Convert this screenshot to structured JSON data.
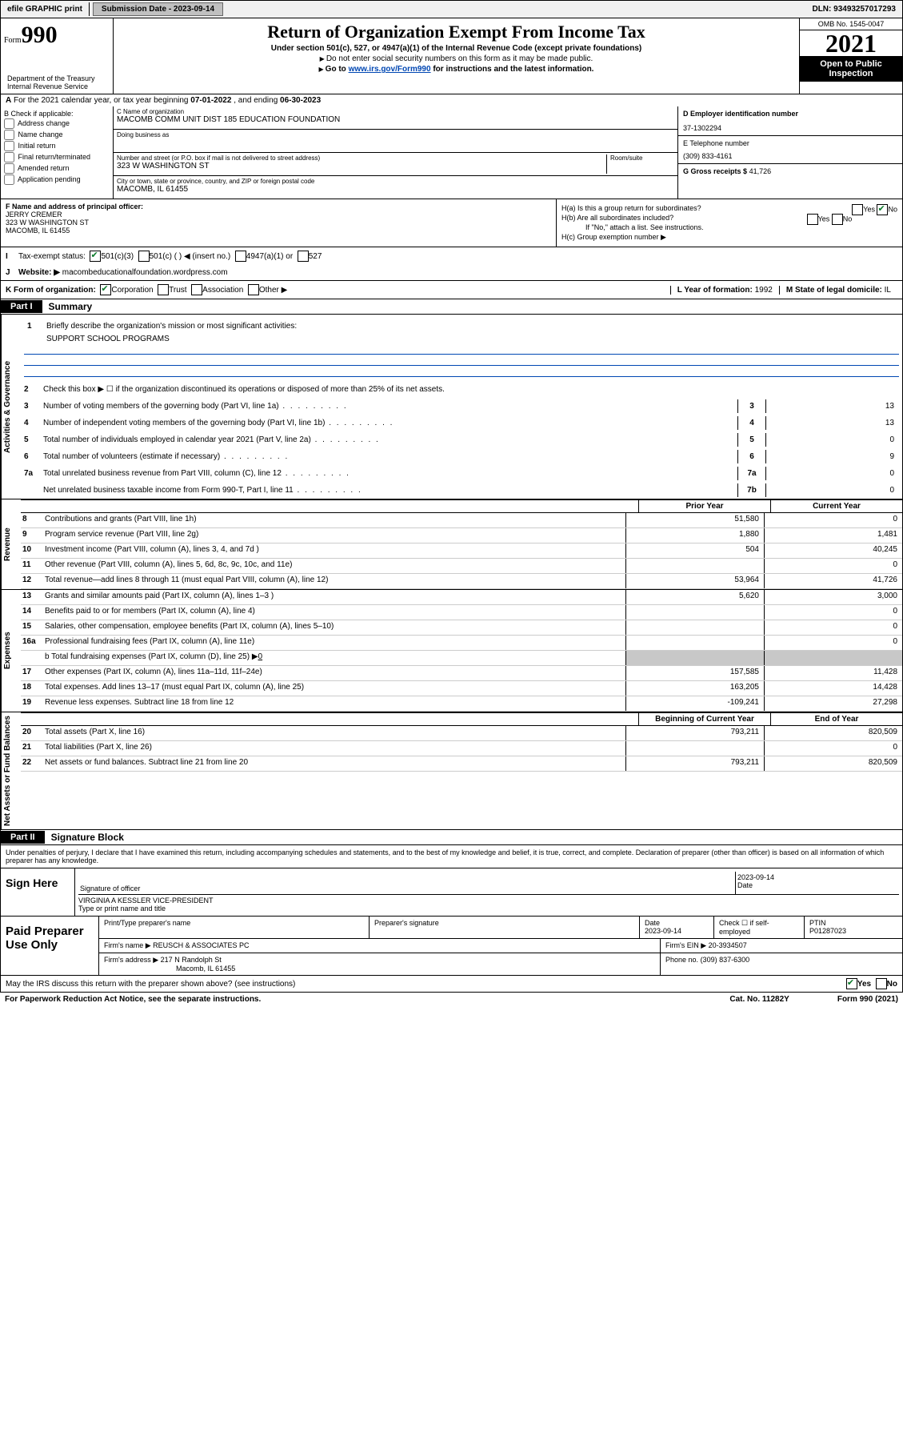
{
  "topbar": {
    "efile": "efile GRAPHIC print",
    "submission_label": "Submission Date - 2023-09-14",
    "dln": "DLN: 93493257017293"
  },
  "header": {
    "form_prefix": "Form",
    "form_number": "990",
    "title": "Return of Organization Exempt From Income Tax",
    "sub1": "Under section 501(c), 527, or 4947(a)(1) of the Internal Revenue Code (except private foundations)",
    "sub2": "Do not enter social security numbers on this form as it may be made public.",
    "sub3_pre": "Go to ",
    "sub3_link": "www.irs.gov/Form990",
    "sub3_post": " for instructions and the latest information.",
    "dept": "Department of the Treasury\nInternal Revenue Service",
    "omb": "OMB No. 1545-0047",
    "year": "2021",
    "open": "Open to Public Inspection"
  },
  "rowA": {
    "label": "A",
    "text_pre": "For the 2021 calendar year, or tax year beginning ",
    "begin": "07-01-2022",
    "mid": " , and ending ",
    "end": "06-30-2023"
  },
  "boxB": {
    "label": "B Check if applicable:",
    "items": [
      "Address change",
      "Name change",
      "Initial return",
      "Final return/terminated",
      "Amended return",
      "Application pending"
    ]
  },
  "boxC": {
    "name_lbl": "C Name of organization",
    "name": "MACOMB COMM UNIT DIST 185 EDUCATION FOUNDATION",
    "dba_lbl": "Doing business as",
    "dba": "",
    "addr_lbl": "Number and street (or P.O. box if mail is not delivered to street address)",
    "room_lbl": "Room/suite",
    "street": "323 W WASHINGTON ST",
    "city_lbl": "City or town, state or province, country, and ZIP or foreign postal code",
    "city": "MACOMB, IL  61455"
  },
  "boxD": {
    "ein_lbl": "D Employer identification number",
    "ein": "37-1302294"
  },
  "boxE": {
    "tel_lbl": "E Telephone number",
    "tel": "(309) 833-4161"
  },
  "boxG": {
    "lbl": "G Gross receipts $",
    "val": "41,726"
  },
  "boxF": {
    "lbl": "F Name and address of principal officer:",
    "name": "JERRY CREMER",
    "addr1": "323 W WASHINGTON ST",
    "addr2": "MACOMB, IL  61455"
  },
  "boxH": {
    "ha": "H(a)  Is this a group return for subordinates?",
    "hb": "H(b)  Are all subordinates included?",
    "hb_note": "If \"No,\" attach a list. See instructions.",
    "hc": "H(c)  Group exemption number ▶",
    "yes": "Yes",
    "no": "No"
  },
  "rowI": {
    "lbl": "I",
    "tax_lbl": "Tax-exempt status:",
    "opts": [
      "501(c)(3)",
      "501(c) (  ) ◀ (insert no.)",
      "4947(a)(1) or",
      "527"
    ]
  },
  "rowJ": {
    "lbl": "J",
    "web_lbl": "Website: ▶",
    "web": "macombeducationalfoundation.wordpress.com"
  },
  "rowK": {
    "lbl": "K Form of organization:",
    "opts": [
      "Corporation",
      "Trust",
      "Association",
      "Other ▶"
    ],
    "L_lbl": "L Year of formation:",
    "L_val": "1992",
    "M_lbl": "M State of legal domicile:",
    "M_val": "IL"
  },
  "part1": {
    "tab": "Part I",
    "title": "Summary"
  },
  "sideLabels": {
    "gov": "Activities & Governance",
    "rev": "Revenue",
    "exp": "Expenses",
    "net": "Net Assets or Fund Balances"
  },
  "summary": {
    "l1_lbl": "Briefly describe the organization's mission or most significant activities:",
    "l1_val": "SUPPORT SCHOOL PROGRAMS",
    "l2": "Check this box ▶ ☐  if the organization discontinued its operations or disposed of more than 25% of its net assets.",
    "lines_single": [
      {
        "n": "3",
        "t": "Number of voting members of the governing body (Part VI, line 1a)",
        "box": "3",
        "v": "13"
      },
      {
        "n": "4",
        "t": "Number of independent voting members of the governing body (Part VI, line 1b)",
        "box": "4",
        "v": "13"
      },
      {
        "n": "5",
        "t": "Total number of individuals employed in calendar year 2021 (Part V, line 2a)",
        "box": "5",
        "v": "0"
      },
      {
        "n": "6",
        "t": "Total number of volunteers (estimate if necessary)",
        "box": "6",
        "v": "9"
      },
      {
        "n": "7a",
        "t": "Total unrelated business revenue from Part VIII, column (C), line 12",
        "box": "7a",
        "v": "0"
      },
      {
        "n": "",
        "t": "Net unrelated business taxable income from Form 990-T, Part I, line 11",
        "box": "7b",
        "v": "0"
      }
    ],
    "hdr_prior": "Prior Year",
    "hdr_curr": "Current Year",
    "rev_lines": [
      {
        "n": "8",
        "t": "Contributions and grants (Part VIII, line 1h)",
        "p": "51,580",
        "c": "0"
      },
      {
        "n": "9",
        "t": "Program service revenue (Part VIII, line 2g)",
        "p": "1,880",
        "c": "1,481"
      },
      {
        "n": "10",
        "t": "Investment income (Part VIII, column (A), lines 3, 4, and 7d )",
        "p": "504",
        "c": "40,245"
      },
      {
        "n": "11",
        "t": "Other revenue (Part VIII, column (A), lines 5, 6d, 8c, 9c, 10c, and 11e)",
        "p": "",
        "c": "0"
      },
      {
        "n": "12",
        "t": "Total revenue—add lines 8 through 11 (must equal Part VIII, column (A), line 12)",
        "p": "53,964",
        "c": "41,726"
      }
    ],
    "exp_lines": [
      {
        "n": "13",
        "t": "Grants and similar amounts paid (Part IX, column (A), lines 1–3 )",
        "p": "5,620",
        "c": "3,000"
      },
      {
        "n": "14",
        "t": "Benefits paid to or for members (Part IX, column (A), line 4)",
        "p": "",
        "c": "0"
      },
      {
        "n": "15",
        "t": "Salaries, other compensation, employee benefits (Part IX, column (A), lines 5–10)",
        "p": "",
        "c": "0"
      },
      {
        "n": "16a",
        "t": "Professional fundraising fees (Part IX, column (A), line 11e)",
        "p": "",
        "c": "0"
      }
    ],
    "l16b_pre": "b  Total fundraising expenses (Part IX, column (D), line 25) ▶",
    "l16b_val": "0",
    "exp_lines2": [
      {
        "n": "17",
        "t": "Other expenses (Part IX, column (A), lines 11a–11d, 11f–24e)",
        "p": "157,585",
        "c": "11,428"
      },
      {
        "n": "18",
        "t": "Total expenses. Add lines 13–17 (must equal Part IX, column (A), line 25)",
        "p": "163,205",
        "c": "14,428"
      },
      {
        "n": "19",
        "t": "Revenue less expenses. Subtract line 18 from line 12",
        "p": "-109,241",
        "c": "27,298"
      }
    ],
    "hdr_begin": "Beginning of Current Year",
    "hdr_end": "End of Year",
    "net_lines": [
      {
        "n": "20",
        "t": "Total assets (Part X, line 16)",
        "p": "793,211",
        "c": "820,509"
      },
      {
        "n": "21",
        "t": "Total liabilities (Part X, line 26)",
        "p": "",
        "c": "0"
      },
      {
        "n": "22",
        "t": "Net assets or fund balances. Subtract line 21 from line 20",
        "p": "793,211",
        "c": "820,509"
      }
    ]
  },
  "part2": {
    "tab": "Part II",
    "title": "Signature Block",
    "decl": "Under penalties of perjury, I declare that I have examined this return, including accompanying schedules and statements, and to the best of my knowledge and belief, it is true, correct, and complete. Declaration of preparer (other than officer) is based on all information of which preparer has any knowledge."
  },
  "sign": {
    "here": "Sign Here",
    "sig_lbl": "Signature of officer",
    "date_lbl": "Date",
    "date": "2023-09-14",
    "name": "VIRGINIA A KESSLER  VICE-PRESIDENT",
    "name_lbl": "Type or print name and title"
  },
  "prep": {
    "label": "Paid Preparer Use Only",
    "h1": "Print/Type preparer's name",
    "h2": "Preparer's signature",
    "h3": "Date",
    "h3v": "2023-09-14",
    "h4": "Check ☐ if self-employed",
    "h5": "PTIN",
    "h5v": "P01287023",
    "firm_name_lbl": "Firm's name    ▶",
    "firm_name": "REUSCH & ASSOCIATES PC",
    "firm_ein_lbl": "Firm's EIN ▶",
    "firm_ein": "20-3934507",
    "firm_addr_lbl": "Firm's address ▶",
    "firm_addr1": "217 N Randolph St",
    "firm_addr2": "Macomb, IL  61455",
    "phone_lbl": "Phone no.",
    "phone": "(309) 837-6300"
  },
  "footer": {
    "q": "May the IRS discuss this return with the preparer shown above? (see instructions)",
    "yes": "Yes",
    "no": "No",
    "pra": "For Paperwork Reduction Act Notice, see the separate instructions.",
    "cat": "Cat. No. 11282Y",
    "form": "Form 990 (2021)"
  }
}
